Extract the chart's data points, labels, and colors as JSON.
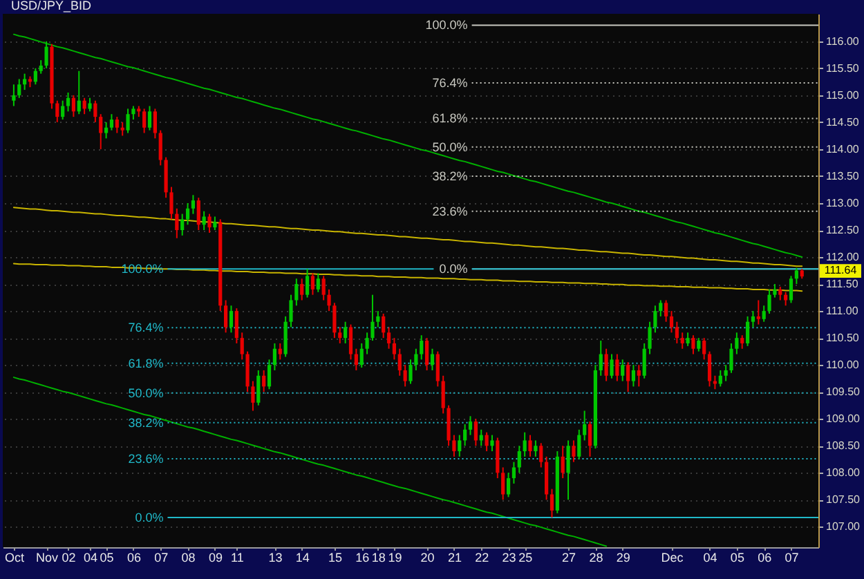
{
  "chart_data": {
    "type": "candlestick",
    "title": "USD/JPY_BID",
    "categories": [
      "Oct",
      null,
      null,
      null,
      null,
      null,
      "Nov",
      null,
      null,
      null,
      "02",
      null,
      null,
      null,
      "04",
      null,
      null,
      "05",
      null,
      null,
      null,
      null,
      "06",
      null,
      null,
      null,
      null,
      "07",
      null,
      null,
      null,
      null,
      "08",
      null,
      null,
      null,
      null,
      "09",
      null,
      null,
      null,
      "11",
      null,
      null,
      null,
      null,
      null,
      null,
      "13",
      null,
      null,
      null,
      null,
      "14",
      null,
      null,
      null,
      null,
      null,
      "15",
      null,
      null,
      null,
      null,
      "16",
      null,
      null,
      "18",
      null,
      null,
      "19",
      null,
      null,
      null,
      null,
      null,
      "20",
      null,
      null,
      null,
      null,
      "21",
      null,
      null,
      null,
      null,
      "22",
      null,
      null,
      null,
      null,
      "23",
      null,
      null,
      "25",
      null,
      null,
      null,
      null,
      null,
      null,
      null,
      "27",
      null,
      null,
      null,
      null,
      "28",
      null,
      null,
      null,
      null,
      "29",
      null,
      null,
      null,
      null,
      null,
      null,
      null,
      null,
      "Dec",
      null,
      null,
      null,
      null,
      null,
      null,
      "04",
      null,
      null,
      null,
      null,
      "05",
      null,
      null,
      null,
      null,
      "06",
      null,
      null,
      null,
      null,
      "07",
      null,
      null
    ],
    "ohlc": [
      [
        114.9,
        115.2,
        114.8,
        115.0
      ],
      [
        115.0,
        115.3,
        114.95,
        115.2
      ],
      [
        115.2,
        115.4,
        115.1,
        115.3
      ],
      [
        115.3,
        115.35,
        115.15,
        115.25
      ],
      [
        115.25,
        115.5,
        115.2,
        115.45
      ],
      [
        115.45,
        115.65,
        115.4,
        115.55
      ],
      [
        115.55,
        116.0,
        115.5,
        115.9
      ],
      [
        115.9,
        115.95,
        114.75,
        114.85
      ],
      [
        114.85,
        114.9,
        114.5,
        114.6
      ],
      [
        114.6,
        114.9,
        114.55,
        114.8
      ],
      [
        114.8,
        115.05,
        114.7,
        114.95
      ],
      [
        114.95,
        115.0,
        114.6,
        114.7
      ],
      [
        114.7,
        115.45,
        114.65,
        114.9
      ],
      [
        114.9,
        114.95,
        114.65,
        114.75
      ],
      [
        114.75,
        114.95,
        114.7,
        114.85
      ],
      [
        114.85,
        114.9,
        114.5,
        114.6
      ],
      [
        114.6,
        114.65,
        114.0,
        114.3
      ],
      [
        114.3,
        114.5,
        114.2,
        114.4
      ],
      [
        114.4,
        114.65,
        114.35,
        114.55
      ],
      [
        114.55,
        114.6,
        114.3,
        114.4
      ],
      [
        114.4,
        114.5,
        114.25,
        114.35
      ],
      [
        114.35,
        114.75,
        114.3,
        114.65
      ],
      [
        114.65,
        114.8,
        114.55,
        114.75
      ],
      [
        114.75,
        114.8,
        114.6,
        114.7
      ],
      [
        114.7,
        114.75,
        114.3,
        114.4
      ],
      [
        114.4,
        114.8,
        114.35,
        114.7
      ],
      [
        114.7,
        114.75,
        114.2,
        114.3
      ],
      [
        114.3,
        114.35,
        113.7,
        113.8
      ],
      [
        113.8,
        113.85,
        113.1,
        113.2
      ],
      [
        113.2,
        113.3,
        112.7,
        112.8
      ],
      [
        112.8,
        112.9,
        112.35,
        112.5
      ],
      [
        112.5,
        112.8,
        112.4,
        112.7
      ],
      [
        112.7,
        113.0,
        112.6,
        112.9
      ],
      [
        112.9,
        113.15,
        112.8,
        113.05
      ],
      [
        113.05,
        113.1,
        112.5,
        112.6
      ],
      [
        112.6,
        112.85,
        112.5,
        112.75
      ],
      [
        112.75,
        112.8,
        112.45,
        112.55
      ],
      [
        112.55,
        112.75,
        112.5,
        112.65
      ],
      [
        112.65,
        112.7,
        111.0,
        111.1
      ],
      [
        111.1,
        111.2,
        110.6,
        110.7
      ],
      [
        110.7,
        111.1,
        110.6,
        111.0
      ],
      [
        111.0,
        111.05,
        110.4,
        110.5
      ],
      [
        110.5,
        110.6,
        110.1,
        110.2
      ],
      [
        110.2,
        110.25,
        109.5,
        109.6
      ],
      [
        109.6,
        109.7,
        109.15,
        109.3
      ],
      [
        109.3,
        109.9,
        109.25,
        109.8
      ],
      [
        109.8,
        109.9,
        109.5,
        109.6
      ],
      [
        109.6,
        110.1,
        109.55,
        110.0
      ],
      [
        110.0,
        110.4,
        109.9,
        110.3
      ],
      [
        110.3,
        110.4,
        110.1,
        110.2
      ],
      [
        110.2,
        110.9,
        110.15,
        110.8
      ],
      [
        110.8,
        111.3,
        110.7,
        111.2
      ],
      [
        111.2,
        111.6,
        111.1,
        111.5
      ],
      [
        111.5,
        111.6,
        111.2,
        111.3
      ],
      [
        111.3,
        111.78,
        111.25,
        111.65
      ],
      [
        111.65,
        111.7,
        111.3,
        111.4
      ],
      [
        111.4,
        111.7,
        111.35,
        111.6
      ],
      [
        111.6,
        111.65,
        111.2,
        111.3
      ],
      [
        111.3,
        111.4,
        111.0,
        111.1
      ],
      [
        111.1,
        111.15,
        110.5,
        110.6
      ],
      [
        110.6,
        110.7,
        110.4,
        110.5
      ],
      [
        110.5,
        110.8,
        110.4,
        110.7
      ],
      [
        110.7,
        110.75,
        110.1,
        110.2
      ],
      [
        110.2,
        110.3,
        109.9,
        110.0
      ],
      [
        110.0,
        110.4,
        109.95,
        110.3
      ],
      [
        110.3,
        110.6,
        110.2,
        110.5
      ],
      [
        110.5,
        111.3,
        110.45,
        110.8
      ],
      [
        110.8,
        111.0,
        110.7,
        110.9
      ],
      [
        110.9,
        110.95,
        110.5,
        110.6
      ],
      [
        110.6,
        110.7,
        110.3,
        110.4
      ],
      [
        110.4,
        110.5,
        110.1,
        110.2
      ],
      [
        110.2,
        110.3,
        109.8,
        109.9
      ],
      [
        109.9,
        110.0,
        109.6,
        109.7
      ],
      [
        109.7,
        110.1,
        109.65,
        110.0
      ],
      [
        110.0,
        110.3,
        109.9,
        110.2
      ],
      [
        110.2,
        110.55,
        110.1,
        110.45
      ],
      [
        110.45,
        110.5,
        109.9,
        110.0
      ],
      [
        110.0,
        110.3,
        109.9,
        110.2
      ],
      [
        110.2,
        110.25,
        109.6,
        109.7
      ],
      [
        109.7,
        109.8,
        109.1,
        109.2
      ],
      [
        109.2,
        109.25,
        108.5,
        108.6
      ],
      [
        108.6,
        108.7,
        108.3,
        108.4
      ],
      [
        108.4,
        108.7,
        108.3,
        108.6
      ],
      [
        108.6,
        108.9,
        108.5,
        108.8
      ],
      [
        108.8,
        109.05,
        108.7,
        108.95
      ],
      [
        108.95,
        109.0,
        108.5,
        108.6
      ],
      [
        108.6,
        108.8,
        108.5,
        108.7
      ],
      [
        108.7,
        108.75,
        108.4,
        108.5
      ],
      [
        108.5,
        108.7,
        108.4,
        108.6
      ],
      [
        108.6,
        108.65,
        107.9,
        108.0
      ],
      [
        108.0,
        108.1,
        107.5,
        107.6
      ],
      [
        107.6,
        108.0,
        107.55,
        107.9
      ],
      [
        107.9,
        108.2,
        107.8,
        108.1
      ],
      [
        108.1,
        108.5,
        108.0,
        108.4
      ],
      [
        108.4,
        108.75,
        108.3,
        108.6
      ],
      [
        108.6,
        108.7,
        108.3,
        108.4
      ],
      [
        108.4,
        108.6,
        108.3,
        108.5
      ],
      [
        108.5,
        108.55,
        108.1,
        108.2
      ],
      [
        108.2,
        108.3,
        107.5,
        107.6
      ],
      [
        107.6,
        107.7,
        107.17,
        107.3
      ],
      [
        107.3,
        108.4,
        107.25,
        108.3
      ],
      [
        108.3,
        108.5,
        107.9,
        108.0
      ],
      [
        108.0,
        108.6,
        107.5,
        108.5
      ],
      [
        108.5,
        108.6,
        108.2,
        108.3
      ],
      [
        108.3,
        108.8,
        108.25,
        108.7
      ],
      [
        108.7,
        109.15,
        108.6,
        108.9
      ],
      [
        108.9,
        108.95,
        108.3,
        108.5
      ],
      [
        108.5,
        110.0,
        108.45,
        109.9
      ],
      [
        109.9,
        110.45,
        109.8,
        110.2
      ],
      [
        110.2,
        110.3,
        109.7,
        109.8
      ],
      [
        109.8,
        110.2,
        109.75,
        110.1
      ],
      [
        110.1,
        110.2,
        109.7,
        109.8
      ],
      [
        109.8,
        110.1,
        109.7,
        110.0
      ],
      [
        110.0,
        110.05,
        109.5,
        109.7
      ],
      [
        109.7,
        110.0,
        109.6,
        109.9
      ],
      [
        109.9,
        110.0,
        109.6,
        109.8
      ],
      [
        109.8,
        110.4,
        109.75,
        110.3
      ],
      [
        110.3,
        110.8,
        110.2,
        110.7
      ],
      [
        110.7,
        111.1,
        110.6,
        111.0
      ],
      [
        111.0,
        111.2,
        110.9,
        111.15
      ],
      [
        111.15,
        111.2,
        110.8,
        110.9
      ],
      [
        110.9,
        111.0,
        110.6,
        110.7
      ],
      [
        110.7,
        110.8,
        110.4,
        110.5
      ],
      [
        110.5,
        110.6,
        110.3,
        110.4
      ],
      [
        110.4,
        110.6,
        110.35,
        110.5
      ],
      [
        110.5,
        110.55,
        110.2,
        110.3
      ],
      [
        110.3,
        110.5,
        110.25,
        110.45
      ],
      [
        110.45,
        110.5,
        110.1,
        110.2
      ],
      [
        110.2,
        110.25,
        109.6,
        109.7
      ],
      [
        109.7,
        109.8,
        109.55,
        109.65
      ],
      [
        109.65,
        109.9,
        109.6,
        109.8
      ],
      [
        109.8,
        110.0,
        109.7,
        109.9
      ],
      [
        109.9,
        110.4,
        109.85,
        110.3
      ],
      [
        110.3,
        110.6,
        110.2,
        110.5
      ],
      [
        110.5,
        110.55,
        110.3,
        110.4
      ],
      [
        110.4,
        110.9,
        110.35,
        110.8
      ],
      [
        110.8,
        111.0,
        110.7,
        110.9
      ],
      [
        110.9,
        111.2,
        110.75,
        110.85
      ],
      [
        110.85,
        111.1,
        110.8,
        111.0
      ],
      [
        111.0,
        111.4,
        110.95,
        111.3
      ],
      [
        111.3,
        111.5,
        111.25,
        111.4
      ],
      [
        111.4,
        111.45,
        111.2,
        111.3
      ],
      [
        111.3,
        111.35,
        111.1,
        111.2
      ],
      [
        111.2,
        111.65,
        111.15,
        111.6
      ],
      [
        111.6,
        111.8,
        111.5,
        111.75
      ],
      [
        111.75,
        111.78,
        111.6,
        111.64
      ]
    ],
    "series": [
      {
        "type": "line",
        "color": "#00b000",
        "values": [
          116.13,
          116.1,
          116.08,
          116.05,
          116.02,
          115.99,
          115.96,
          115.93,
          115.9,
          115.88,
          115.85,
          115.82,
          115.79,
          115.76,
          115.73,
          115.7,
          115.68,
          115.65,
          115.62,
          115.59,
          115.56,
          115.53,
          115.51,
          115.48,
          115.45,
          115.42,
          115.39,
          115.36,
          115.33,
          115.31,
          115.28,
          115.25,
          115.22,
          115.19,
          115.16,
          115.13,
          115.11,
          115.08,
          115.05,
          115.02,
          114.99,
          114.96,
          114.94,
          114.91,
          114.88,
          114.85,
          114.82,
          114.79,
          114.76,
          114.74,
          114.71,
          114.68,
          114.65,
          114.62,
          114.59,
          114.56,
          114.54,
          114.51,
          114.48,
          114.45,
          114.42,
          114.39,
          114.36,
          114.34,
          114.31,
          114.28,
          114.25,
          114.22,
          114.19,
          114.17,
          114.14,
          114.11,
          114.08,
          114.05,
          114.02,
          113.99,
          113.97,
          113.94,
          113.91,
          113.88,
          113.85,
          113.82,
          113.79,
          113.77,
          113.74,
          113.71,
          113.68,
          113.65,
          113.62,
          113.59,
          113.57,
          113.54,
          113.51,
          113.48,
          113.45,
          113.42,
          113.4,
          113.37,
          113.34,
          113.31,
          113.28,
          113.25,
          113.22,
          113.2,
          113.17,
          113.14,
          113.11,
          113.08,
          113.05,
          113.02,
          113.0,
          112.97,
          112.94,
          112.91,
          112.88,
          112.85,
          112.83,
          112.8,
          112.77,
          112.74,
          112.71,
          112.68,
          112.65,
          112.63,
          112.6,
          112.57,
          112.54,
          112.51,
          112.48,
          112.45,
          112.43,
          112.4,
          112.37,
          112.34,
          112.31,
          112.28,
          112.25,
          112.23,
          112.2,
          112.17,
          112.14,
          112.11,
          112.08,
          112.06,
          112.03,
          112.0
        ]
      },
      {
        "type": "line",
        "color": "#00b000",
        "values": [
          109.77,
          109.74,
          109.72,
          109.69,
          109.66,
          109.63,
          109.6,
          109.57,
          109.54,
          109.51,
          109.49,
          109.46,
          109.43,
          109.4,
          109.37,
          109.34,
          109.31,
          109.28,
          109.26,
          109.23,
          109.2,
          109.17,
          109.14,
          109.11,
          109.08,
          109.06,
          109.03,
          109.0,
          108.97,
          108.94,
          108.91,
          108.88,
          108.85,
          108.83,
          108.8,
          108.77,
          108.74,
          108.71,
          108.68,
          108.65,
          108.62,
          108.6,
          108.57,
          108.54,
          108.51,
          108.48,
          108.45,
          108.42,
          108.39,
          108.37,
          108.34,
          108.31,
          108.28,
          108.25,
          108.22,
          108.19,
          108.16,
          108.14,
          108.11,
          108.08,
          108.05,
          108.02,
          107.99,
          107.96,
          107.94,
          107.91,
          107.88,
          107.85,
          107.82,
          107.79,
          107.76,
          107.73,
          107.71,
          107.68,
          107.65,
          107.62,
          107.59,
          107.56,
          107.53,
          107.5,
          107.48,
          107.45,
          107.42,
          107.39,
          107.36,
          107.33,
          107.3,
          107.27,
          107.25,
          107.22,
          107.19,
          107.16,
          107.13,
          107.1,
          107.07,
          107.04,
          107.02,
          106.99,
          106.96,
          106.93,
          106.9,
          106.87,
          106.84,
          106.82,
          106.79,
          106.76,
          106.73,
          106.7,
          106.67,
          106.64,
          null,
          null,
          null,
          null,
          null,
          null,
          null,
          null,
          null,
          null,
          null,
          null,
          null,
          null,
          null,
          null,
          null,
          null,
          null,
          null,
          null,
          null,
          null,
          null,
          null,
          null,
          null,
          null,
          null,
          null,
          null,
          null,
          null,
          null,
          null,
          null
        ]
      },
      {
        "type": "line",
        "color": "#c8b400",
        "values": [
          112.92,
          112.91,
          112.9,
          112.89,
          112.89,
          112.88,
          112.87,
          112.86,
          112.86,
          112.85,
          112.84,
          112.83,
          112.83,
          112.82,
          112.81,
          112.8,
          112.8,
          112.79,
          112.78,
          112.77,
          112.77,
          112.76,
          112.75,
          112.74,
          112.74,
          112.73,
          112.72,
          112.71,
          112.71,
          112.7,
          112.69,
          112.68,
          112.68,
          112.67,
          112.66,
          112.65,
          112.65,
          112.64,
          112.63,
          112.62,
          112.62,
          112.61,
          112.6,
          112.59,
          112.59,
          112.58,
          112.57,
          112.56,
          112.56,
          112.55,
          112.54,
          112.53,
          112.53,
          112.52,
          112.51,
          112.5,
          112.5,
          112.49,
          112.48,
          112.47,
          112.47,
          112.46,
          112.45,
          112.44,
          112.44,
          112.43,
          112.42,
          112.41,
          112.41,
          112.4,
          112.39,
          112.38,
          112.38,
          112.37,
          112.36,
          112.35,
          112.35,
          112.34,
          112.33,
          112.32,
          112.32,
          112.31,
          112.3,
          112.29,
          112.29,
          112.28,
          112.27,
          112.26,
          112.26,
          112.25,
          112.24,
          112.23,
          112.22,
          112.22,
          112.21,
          112.2,
          112.19,
          112.19,
          112.18,
          112.17,
          112.16,
          112.16,
          112.15,
          112.14,
          112.13,
          112.13,
          112.12,
          112.11,
          112.1,
          112.1,
          112.09,
          112.08,
          112.07,
          112.07,
          112.06,
          112.05,
          112.04,
          112.04,
          112.03,
          112.02,
          112.01,
          112.01,
          112.0,
          111.99,
          111.98,
          111.98,
          111.97,
          111.96,
          111.95,
          111.95,
          111.94,
          111.93,
          111.92,
          111.92,
          111.91,
          111.9,
          111.89,
          111.89,
          111.88,
          111.87,
          111.86,
          111.86,
          111.85,
          111.84,
          111.83,
          111.83
        ]
      },
      {
        "type": "line",
        "color": "#c8b400",
        "values": [
          111.88,
          111.87,
          111.87,
          111.87,
          111.86,
          111.86,
          111.86,
          111.85,
          111.85,
          111.85,
          111.84,
          111.84,
          111.84,
          111.83,
          111.83,
          111.82,
          111.82,
          111.82,
          111.81,
          111.81,
          111.81,
          111.8,
          111.8,
          111.8,
          111.79,
          111.79,
          111.79,
          111.78,
          111.78,
          111.78,
          111.77,
          111.77,
          111.77,
          111.76,
          111.76,
          111.76,
          111.75,
          111.75,
          111.74,
          111.74,
          111.74,
          111.73,
          111.73,
          111.73,
          111.72,
          111.72,
          111.72,
          111.71,
          111.71,
          111.71,
          111.7,
          111.7,
          111.7,
          111.69,
          111.69,
          111.69,
          111.68,
          111.68,
          111.68,
          111.67,
          111.67,
          111.66,
          111.66,
          111.66,
          111.65,
          111.65,
          111.65,
          111.64,
          111.64,
          111.64,
          111.63,
          111.63,
          111.63,
          111.62,
          111.62,
          111.62,
          111.61,
          111.61,
          111.61,
          111.6,
          111.6,
          111.6,
          111.59,
          111.59,
          111.58,
          111.58,
          111.58,
          111.57,
          111.57,
          111.57,
          111.56,
          111.56,
          111.56,
          111.55,
          111.55,
          111.55,
          111.54,
          111.54,
          111.54,
          111.53,
          111.53,
          111.53,
          111.52,
          111.52,
          111.52,
          111.51,
          111.51,
          111.51,
          111.5,
          111.5,
          111.49,
          111.49,
          111.49,
          111.48,
          111.48,
          111.48,
          111.47,
          111.47,
          111.47,
          111.46,
          111.46,
          111.46,
          111.45,
          111.45,
          111.45,
          111.44,
          111.44,
          111.44,
          111.43,
          111.43,
          111.43,
          111.42,
          111.42,
          111.41,
          111.41,
          111.41,
          111.4,
          111.4,
          111.4,
          111.39,
          111.39,
          111.39,
          111.38,
          111.38,
          111.38,
          111.37
        ]
      }
    ],
    "ref_lines": [
      {
        "axis": "y",
        "value": 116.3,
        "color": "#c8c8c0",
        "line_style": "solid"
      },
      {
        "axis": "y",
        "value": 115.23,
        "color": "#c8c8c0",
        "line_style": "dotted"
      },
      {
        "axis": "y",
        "value": 114.57,
        "color": "#c8c8c0",
        "line_style": "dotted"
      },
      {
        "axis": "y",
        "value": 114.04,
        "color": "#c8c8c0",
        "line_style": "dotted"
      },
      {
        "axis": "y",
        "value": 113.5,
        "color": "#c8c8c0",
        "line_style": "dotted"
      },
      {
        "axis": "y",
        "value": 112.85,
        "color": "#c8c8c0",
        "line_style": "dotted"
      },
      {
        "axis": "y",
        "value": 111.78,
        "color": "#c8c8c0",
        "line_style": "solid"
      },
      {
        "axis": "y",
        "value": 111.78,
        "color": "#20b8c8",
        "line_style": "solid"
      },
      {
        "axis": "y",
        "value": 110.69,
        "color": "#20b8c8",
        "line_style": "dotted"
      },
      {
        "axis": "y",
        "value": 110.03,
        "color": "#20b8c8",
        "line_style": "dotted"
      },
      {
        "axis": "y",
        "value": 109.48,
        "color": "#20b8c8",
        "line_style": "dotted"
      },
      {
        "axis": "y",
        "value": 108.93,
        "color": "#20b8c8",
        "line_style": "dotted"
      },
      {
        "axis": "y",
        "value": 108.26,
        "color": "#20b8c8",
        "line_style": "dotted"
      },
      {
        "axis": "y",
        "value": 107.17,
        "color": "#20b8c8",
        "line_style": "solid"
      }
    ],
    "annotations": [
      "100.0%",
      "76.4%",
      "61.8%",
      "50.0%",
      "38.2%",
      "23.6%",
      "0.0%",
      "100.0%",
      "76.4%",
      "61.8%",
      "50.0%",
      "38.2%",
      "23.6%",
      "0.0%",
      "111.64"
    ],
    "ylim": [
      106.62,
      116.51
    ],
    "yticks": [
      {
        "value": 107,
        "label": "107.00"
      },
      {
        "value": 107.5,
        "label": "107.50"
      },
      {
        "value": 108,
        "label": "108.00"
      },
      {
        "value": 108.5,
        "label": "108.50"
      },
      {
        "value": 109,
        "label": "109.00"
      },
      {
        "value": 109.5,
        "label": "109.50"
      },
      {
        "value": 110,
        "label": "110.00"
      },
      {
        "value": 110.5,
        "label": "110.50"
      },
      {
        "value": 111,
        "label": "111.00"
      },
      {
        "value": 111.5,
        "label": "111.50"
      },
      {
        "value": 112,
        "label": "112.00"
      },
      {
        "value": 112.5,
        "label": "112.50"
      },
      {
        "value": 113,
        "label": "113.00"
      },
      {
        "value": 113.5,
        "label": "113.50"
      },
      {
        "value": 114,
        "label": "114.00"
      },
      {
        "value": 114.5,
        "label": "114.50"
      },
      {
        "value": 115,
        "label": "115.00"
      },
      {
        "value": 115.5,
        "label": "115.50"
      },
      {
        "value": 116,
        "label": "116.00"
      }
    ],
    "grid": "y"
  }
}
